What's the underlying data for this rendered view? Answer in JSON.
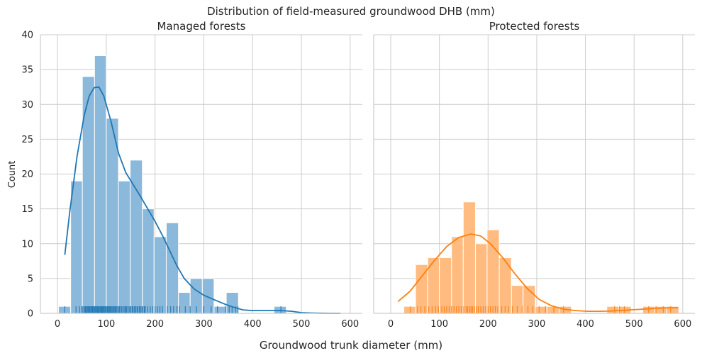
{
  "chart_data": {
    "type": "histogram",
    "title": "Distribution of field-measured groundwood DHB (mm)",
    "xlabel": "Groundwood trunk diameter (mm)",
    "ylabel": "Count",
    "xlim": [
      -35,
      625
    ],
    "ylim": [
      0,
      40
    ],
    "xticks": [
      "0",
      "100",
      "200",
      "300",
      "400",
      "500",
      "600"
    ],
    "yticks": [
      "0",
      "5",
      "10",
      "15",
      "20",
      "25",
      "30",
      "35",
      "40"
    ],
    "grid": true,
    "panels": [
      {
        "subtitle": "Managed forests",
        "color": "#1f77b4",
        "bar_color": "#8bb9db",
        "bins": [
          [
            2,
            27,
            1
          ],
          [
            27,
            51,
            19
          ],
          [
            51,
            76,
            34
          ],
          [
            76,
            100,
            37
          ],
          [
            100,
            125,
            28
          ],
          [
            125,
            149,
            19
          ],
          [
            149,
            174,
            22
          ],
          [
            174,
            198,
            15
          ],
          [
            198,
            223,
            11
          ],
          [
            223,
            248,
            13
          ],
          [
            248,
            272,
            3
          ],
          [
            272,
            297,
            5
          ],
          [
            297,
            321,
            5
          ],
          [
            321,
            346,
            1
          ],
          [
            346,
            371,
            3
          ],
          [
            444,
            469,
            1
          ]
        ],
        "kde": [
          [
            15,
            8.4
          ],
          [
            25,
            14.5
          ],
          [
            40,
            22.5
          ],
          [
            55,
            28.5
          ],
          [
            65,
            31.2
          ],
          [
            75,
            32.4
          ],
          [
            85,
            32.5
          ],
          [
            95,
            31.2
          ],
          [
            110,
            27.5
          ],
          [
            125,
            23.0
          ],
          [
            140,
            20.2
          ],
          [
            155,
            18.5
          ],
          [
            170,
            16.8
          ],
          [
            185,
            15.0
          ],
          [
            200,
            13.2
          ],
          [
            215,
            11.2
          ],
          [
            230,
            9.0
          ],
          [
            245,
            6.8
          ],
          [
            260,
            5.0
          ],
          [
            280,
            3.5
          ],
          [
            300,
            2.6
          ],
          [
            320,
            2.0
          ],
          [
            340,
            1.4
          ],
          [
            360,
            0.9
          ],
          [
            380,
            0.5
          ],
          [
            400,
            0.4
          ],
          [
            420,
            0.4
          ],
          [
            440,
            0.4
          ],
          [
            460,
            0.4
          ],
          [
            480,
            0.3
          ],
          [
            500,
            0.1
          ],
          [
            520,
            0.05
          ],
          [
            540,
            0.02
          ],
          [
            580,
            0.0
          ]
        ],
        "rug": [
          15,
          38,
          45,
          50,
          52,
          55,
          57,
          58,
          60,
          62,
          63,
          65,
          66,
          68,
          70,
          71,
          72,
          74,
          75,
          76,
          78,
          79,
          80,
          82,
          83,
          85,
          86,
          88,
          90,
          91,
          92,
          94,
          95,
          97,
          98,
          100,
          102,
          103,
          105,
          107,
          108,
          110,
          112,
          114,
          116,
          118,
          120,
          122,
          125,
          127,
          130,
          132,
          135,
          138,
          140,
          142,
          145,
          148,
          150,
          153,
          155,
          158,
          160,
          163,
          165,
          168,
          170,
          173,
          175,
          178,
          180,
          185,
          190,
          195,
          200,
          205,
          210,
          215,
          225,
          232,
          238,
          245,
          250,
          262,
          272,
          285,
          300,
          315,
          328,
          345,
          352,
          358,
          365,
          370,
          458
        ]
      },
      {
        "subtitle": "Protected forests",
        "color": "#ff7f0e",
        "bar_color": "#ffbb80",
        "bins": [
          [
            27,
            51,
            1
          ],
          [
            51,
            76,
            7
          ],
          [
            76,
            100,
            8
          ],
          [
            100,
            125,
            8
          ],
          [
            125,
            149,
            11
          ],
          [
            149,
            174,
            16
          ],
          [
            174,
            198,
            10
          ],
          [
            198,
            223,
            12
          ],
          [
            223,
            248,
            8
          ],
          [
            248,
            272,
            4
          ],
          [
            272,
            297,
            4
          ],
          [
            297,
            321,
            1
          ],
          [
            321,
            346,
            1
          ],
          [
            346,
            371,
            1
          ],
          [
            444,
            469,
            1
          ],
          [
            469,
            494,
            1
          ],
          [
            518,
            543,
            1
          ],
          [
            543,
            567,
            1
          ],
          [
            567,
            592,
            1
          ]
        ],
        "kde": [
          [
            15,
            1.7
          ],
          [
            40,
            3.2
          ],
          [
            65,
            5.4
          ],
          [
            90,
            7.6
          ],
          [
            115,
            9.6
          ],
          [
            140,
            10.9
          ],
          [
            165,
            11.4
          ],
          [
            185,
            11.1
          ],
          [
            205,
            10.0
          ],
          [
            230,
            8.0
          ],
          [
            255,
            5.7
          ],
          [
            280,
            3.6
          ],
          [
            305,
            2.0
          ],
          [
            330,
            1.1
          ],
          [
            355,
            0.6
          ],
          [
            380,
            0.4
          ],
          [
            405,
            0.3
          ],
          [
            430,
            0.3
          ],
          [
            455,
            0.35
          ],
          [
            480,
            0.45
          ],
          [
            505,
            0.55
          ],
          [
            530,
            0.65
          ],
          [
            555,
            0.75
          ],
          [
            575,
            0.8
          ],
          [
            590,
            0.8
          ]
        ],
        "rug": [
          40,
          55,
          62,
          70,
          78,
          85,
          92,
          98,
          105,
          110,
          115,
          120,
          125,
          130,
          135,
          140,
          145,
          150,
          155,
          158,
          162,
          165,
          168,
          172,
          176,
          180,
          185,
          190,
          195,
          200,
          205,
          210,
          215,
          220,
          228,
          235,
          242,
          250,
          260,
          270,
          282,
          292,
          305,
          318,
          335,
          355,
          460,
          470,
          480,
          530,
          545,
          560,
          575
        ]
      }
    ]
  }
}
